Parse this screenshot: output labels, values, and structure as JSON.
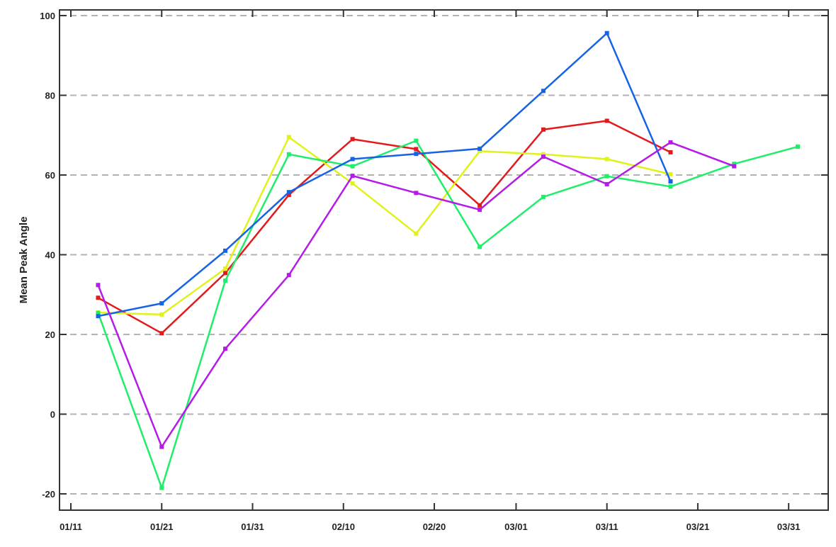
{
  "chart_data": {
    "type": "line",
    "title": "",
    "xlabel": "",
    "ylabel": "Mean Peak Angle",
    "x_tick_labels": [
      "01/11",
      "01/21",
      "01/31",
      "02/10",
      "02/20",
      "03/01",
      "03/11",
      "03/21",
      "03/31"
    ],
    "y_tick_labels": [
      "-20",
      "0",
      "20",
      "40",
      "60",
      "80",
      "100"
    ],
    "ylim": [
      -23,
      102
    ],
    "grid": "horizontal dashed",
    "x_dates": [
      "01/14",
      "01/21",
      "01/28",
      "02/04",
      "02/11",
      "02/18",
      "02/25",
      "03/04",
      "03/11",
      "03/18",
      "03/25",
      "04/01"
    ],
    "series": [
      {
        "color": "#e31a1c",
        "values": [
          29.2,
          20.3,
          35.4,
          55.0,
          69.0,
          66.5,
          52.4,
          71.4,
          73.6,
          65.7,
          null,
          null
        ]
      },
      {
        "color": "#dff21a",
        "values": [
          25.5,
          25.0,
          36.5,
          69.5,
          57.9,
          45.3,
          66.0,
          65.2,
          64.0,
          60.2,
          null,
          null
        ]
      },
      {
        "color": "#1fee6a",
        "values": [
          25.4,
          -18.5,
          33.5,
          65.2,
          62.2,
          68.6,
          42.0,
          54.5,
          59.7,
          57.1,
          62.8,
          67.1
        ]
      },
      {
        "color": "#1763e6",
        "values": [
          24.6,
          27.8,
          41.0,
          55.7,
          64.0,
          65.3,
          66.6,
          81.1,
          95.6,
          58.4,
          null,
          null
        ]
      },
      {
        "color": "#b41be8",
        "values": [
          32.4,
          -8.2,
          16.4,
          34.9,
          59.8,
          55.5,
          51.3,
          64.6,
          57.7,
          68.2,
          62.2,
          null
        ]
      }
    ]
  }
}
